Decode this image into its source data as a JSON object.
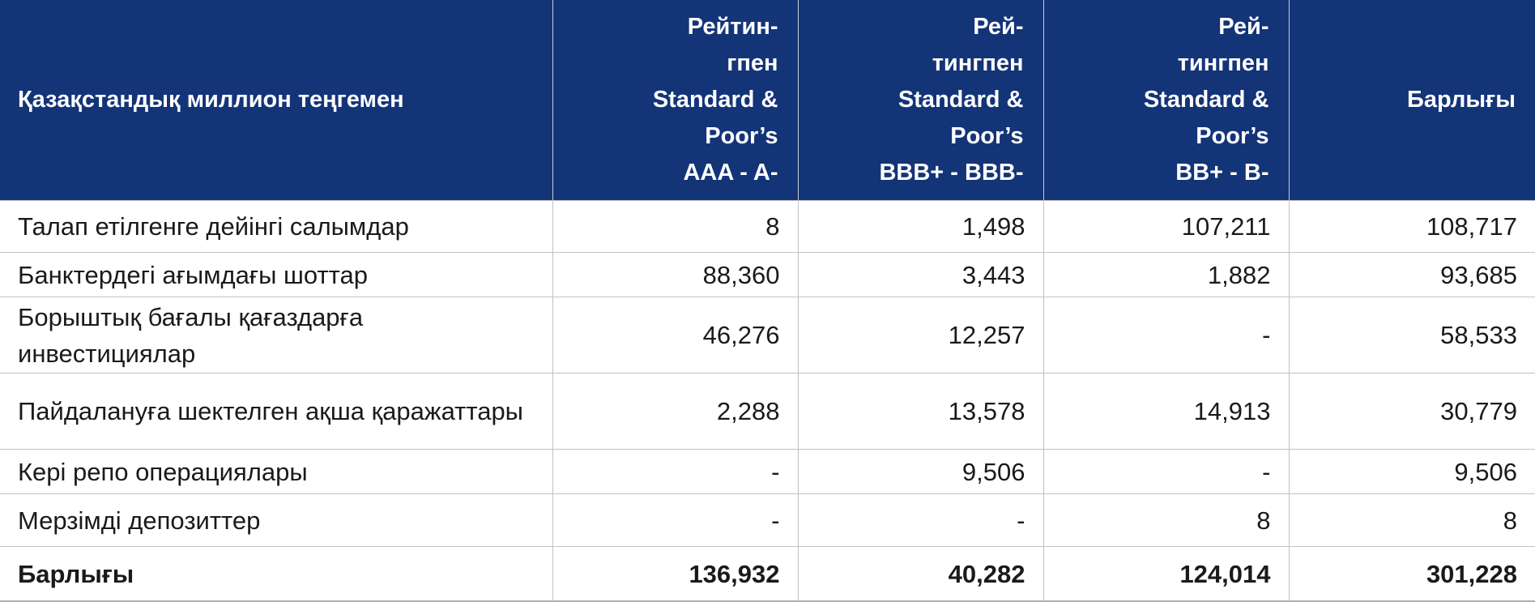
{
  "table": {
    "header": {
      "label": "Қазақстандық миллион теңгемен",
      "columns": [
        {
          "lines": [
            "Рейтин-",
            "гпен",
            "Standard &",
            "Poor’s",
            "AAA - A-"
          ]
        },
        {
          "lines": [
            "Рей-",
            "тингпен",
            "Standard &",
            "Poor’s",
            "BBB+ - BBB-"
          ]
        },
        {
          "lines": [
            "Рей-",
            "тингпен",
            "Standard &",
            "Poor’s",
            "BB+ - B-"
          ]
        },
        {
          "lines": [
            "Барлығы"
          ]
        }
      ]
    },
    "rows": [
      {
        "label": "Талап етілгенге дейінгі салымдар",
        "values": [
          "8",
          "1,498",
          "107,211",
          "108,717"
        ]
      },
      {
        "label": "Банктердегі ағымдағы шоттар",
        "values": [
          "88,360",
          "3,443",
          "1,882",
          "93,685"
        ]
      },
      {
        "label": "Борыштық бағалы қағаздарға инвестициялар",
        "values": [
          "46,276",
          "12,257",
          "-",
          "58,533"
        ]
      },
      {
        "label": "Пайдалануға шектелген ақша қаражаттары",
        "values": [
          "2,288",
          "13,578",
          "14,913",
          "30,779"
        ]
      },
      {
        "label": "Кері репо операциялары",
        "values": [
          "-",
          "9,506",
          "-",
          "9,506"
        ]
      },
      {
        "label": "Мерзімді депозиттер",
        "values": [
          "-",
          "-",
          "8",
          "8"
        ]
      }
    ],
    "total": {
      "label": "Барлығы",
      "values": [
        "136,932",
        "40,282",
        "124,014",
        "301,228"
      ]
    }
  },
  "colors": {
    "header_background": "#143478",
    "header_text": "#ffffff",
    "body_text": "#1a1a1a",
    "grid_lines": "#c2c2c2"
  }
}
